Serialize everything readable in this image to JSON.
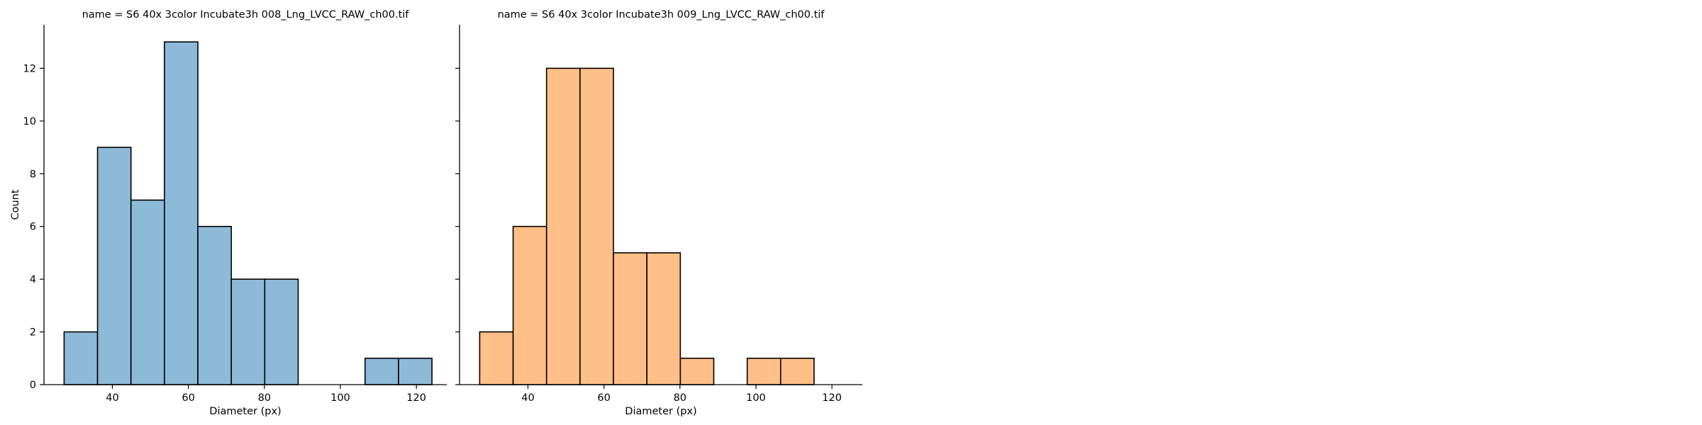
{
  "chart_data": [
    {
      "type": "bar",
      "title": "name = S6 40x 3color Incubate3h 008_Lng_LVCC_RAW_ch00.tif",
      "xlabel": "Diameter (px)",
      "ylabel": "Count",
      "xlim": [
        22,
        128
      ],
      "ylim": [
        0,
        13.65
      ],
      "xticks": [
        "40",
        "60",
        "80",
        "100",
        "120"
      ],
      "yticks": [
        "0",
        "2",
        "4",
        "6",
        "8",
        "10",
        "12"
      ],
      "bar_color": "#8ebad9",
      "bins": [
        {
          "x0": 27.3,
          "x1": 36.1,
          "count": 2
        },
        {
          "x0": 36.1,
          "x1": 44.9,
          "count": 9
        },
        {
          "x0": 44.9,
          "x1": 53.7,
          "count": 7
        },
        {
          "x0": 53.7,
          "x1": 62.5,
          "count": 13
        },
        {
          "x0": 62.5,
          "x1": 71.3,
          "count": 6
        },
        {
          "x0": 71.3,
          "x1": 80.1,
          "count": 4
        },
        {
          "x0": 80.1,
          "x1": 88.9,
          "count": 4
        },
        {
          "x0": 88.9,
          "x1": 97.7,
          "count": 0
        },
        {
          "x0": 97.7,
          "x1": 106.5,
          "count": 0
        },
        {
          "x0": 106.5,
          "x1": 115.3,
          "count": 1
        },
        {
          "x0": 115.3,
          "x1": 124.1,
          "count": 1
        }
      ]
    },
    {
      "type": "bar",
      "title": "name = S6 40x 3color Incubate3h 009_Lng_LVCC_RAW_ch00.tif",
      "xlabel": "Diameter (px)",
      "ylabel": "",
      "xlim": [
        22,
        128
      ],
      "ylim": [
        0,
        13.65
      ],
      "xticks": [
        "40",
        "60",
        "80",
        "100",
        "120"
      ],
      "yticks": [
        "0",
        "2",
        "4",
        "6",
        "8",
        "10",
        "12"
      ],
      "bar_color": "#ffbf86",
      "bins": [
        {
          "x0": 27.3,
          "x1": 36.1,
          "count": 2
        },
        {
          "x0": 36.1,
          "x1": 44.9,
          "count": 6
        },
        {
          "x0": 44.9,
          "x1": 53.7,
          "count": 12
        },
        {
          "x0": 53.7,
          "x1": 62.5,
          "count": 12
        },
        {
          "x0": 62.5,
          "x1": 71.3,
          "count": 5
        },
        {
          "x0": 71.3,
          "x1": 80.1,
          "count": 5
        },
        {
          "x0": 80.1,
          "x1": 88.9,
          "count": 1
        },
        {
          "x0": 88.9,
          "x1": 97.7,
          "count": 0
        },
        {
          "x0": 97.7,
          "x1": 106.5,
          "count": 1
        },
        {
          "x0": 106.5,
          "x1": 115.3,
          "count": 1
        }
      ]
    }
  ]
}
